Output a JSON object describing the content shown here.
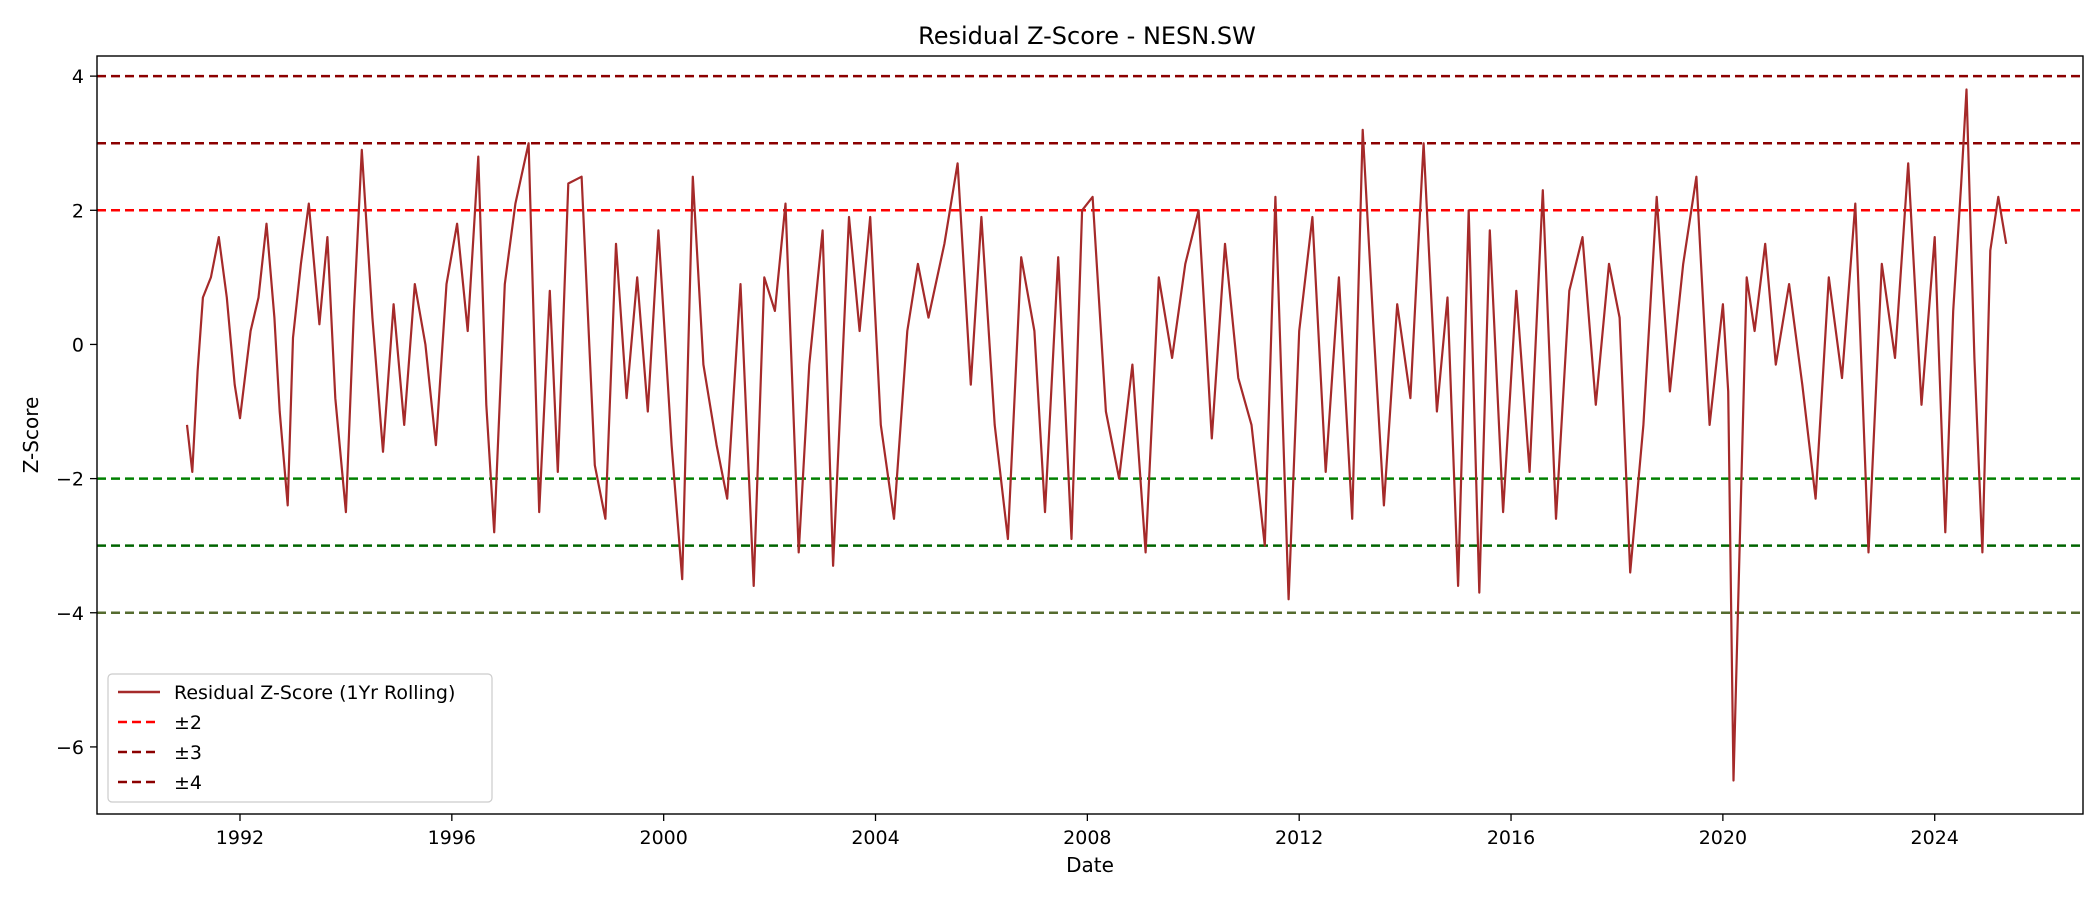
{
  "chart_data": {
    "type": "line",
    "title": "Residual Z-Score - NESN.SW",
    "xlabel": "Date",
    "ylabel": "Z-Score",
    "xlim": [
      1989.3,
      2026.8
    ],
    "ylim": [
      -7.0,
      4.3
    ],
    "x_ticks": [
      1992,
      1996,
      2000,
      2004,
      2008,
      2012,
      2016,
      2020,
      2024
    ],
    "y_ticks": [
      -6,
      -4,
      -2,
      0,
      2,
      4
    ],
    "grid": false,
    "legend_position": "lower-left",
    "series": [
      {
        "name": "Residual Z-Score (1Yr Rolling)",
        "color": "#a52a2a",
        "style": "solid",
        "x": [
          1991.0,
          1991.1,
          1991.2,
          1991.3,
          1991.45,
          1991.6,
          1991.75,
          1991.9,
          1992.0,
          1992.2,
          1992.35,
          1992.5,
          1992.65,
          1992.75,
          1992.9,
          1993.0,
          1993.15,
          1993.3,
          1993.5,
          1993.65,
          1993.8,
          1994.0,
          1994.15,
          1994.3,
          1994.5,
          1994.7,
          1994.9,
          1995.1,
          1995.3,
          1995.5,
          1995.7,
          1995.9,
          1996.1,
          1996.3,
          1996.5,
          1996.65,
          1996.8,
          1997.0,
          1997.2,
          1997.45,
          1997.65,
          1997.85,
          1998.0,
          1998.2,
          1998.45,
          1998.7,
          1998.9,
          1999.1,
          1999.3,
          1999.5,
          1999.7,
          1999.9,
          2000.15,
          2000.35,
          2000.55,
          2000.75,
          2001.0,
          2001.2,
          2001.45,
          2001.7,
          2001.9,
          2002.1,
          2002.3,
          2002.55,
          2002.75,
          2003.0,
          2003.2,
          2003.5,
          2003.7,
          2003.9,
          2004.1,
          2004.35,
          2004.6,
          2004.8,
          2005.0,
          2005.3,
          2005.55,
          2005.8,
          2006.0,
          2006.25,
          2006.5,
          2006.75,
          2007.0,
          2007.2,
          2007.45,
          2007.7,
          2007.9,
          2008.1,
          2008.35,
          2008.6,
          2008.85,
          2009.1,
          2009.35,
          2009.6,
          2009.85,
          2010.1,
          2010.35,
          2010.6,
          2010.85,
          2011.1,
          2011.35,
          2011.55,
          2011.8,
          2012.0,
          2012.25,
          2012.5,
          2012.75,
          2013.0,
          2013.2,
          2013.4,
          2013.6,
          2013.85,
          2014.1,
          2014.35,
          2014.6,
          2014.8,
          2015.0,
          2015.2,
          2015.4,
          2015.6,
          2015.85,
          2016.1,
          2016.35,
          2016.6,
          2016.85,
          2017.1,
          2017.35,
          2017.6,
          2017.85,
          2018.05,
          2018.25,
          2018.5,
          2018.75,
          2019.0,
          2019.25,
          2019.5,
          2019.75,
          2020.0,
          2020.1,
          2020.2,
          2020.3,
          2020.45,
          2020.6,
          2020.8,
          2021.0,
          2021.25,
          2021.5,
          2021.75,
          2022.0,
          2022.25,
          2022.5,
          2022.75,
          2023.0,
          2023.25,
          2023.5,
          2023.75,
          2024.0,
          2024.2,
          2024.35,
          2024.5,
          2024.6,
          2024.75,
          2024.9,
          2025.05,
          2025.2,
          2025.35
        ],
        "values": [
          -1.2,
          -1.9,
          -0.4,
          0.7,
          1.0,
          1.6,
          0.7,
          -0.6,
          -1.1,
          0.2,
          0.7,
          1.8,
          0.4,
          -1.0,
          -2.4,
          0.1,
          1.2,
          2.1,
          0.3,
          1.6,
          -0.8,
          -2.5,
          0.5,
          2.9,
          0.4,
          -1.6,
          0.6,
          -1.2,
          0.9,
          0.0,
          -1.5,
          0.9,
          1.8,
          0.2,
          2.8,
          -0.9,
          -2.8,
          0.9,
          2.1,
          3.0,
          -2.5,
          0.8,
          -1.9,
          2.4,
          2.5,
          -1.8,
          -2.6,
          1.5,
          -0.8,
          1.0,
          -1.0,
          1.7,
          -1.5,
          -3.5,
          2.5,
          -0.3,
          -1.5,
          -2.3,
          0.9,
          -3.6,
          1.0,
          0.5,
          2.1,
          -3.1,
          -0.3,
          1.7,
          -3.3,
          1.9,
          0.2,
          1.9,
          -1.2,
          -2.6,
          0.2,
          1.2,
          0.4,
          1.5,
          2.7,
          -0.6,
          1.9,
          -1.2,
          -2.9,
          1.3,
          0.2,
          -2.5,
          1.3,
          -2.9,
          2.0,
          2.2,
          -1.0,
          -2.0,
          -0.3,
          -3.1,
          1.0,
          -0.2,
          1.2,
          2.0,
          -1.4,
          1.5,
          -0.5,
          -1.2,
          -3.0,
          2.2,
          -3.8,
          0.2,
          1.9,
          -1.9,
          1.0,
          -2.6,
          3.2,
          0.3,
          -2.4,
          0.6,
          -0.8,
          3.0,
          -1.0,
          0.7,
          -3.6,
          2.0,
          -3.7,
          1.7,
          -2.5,
          0.8,
          -1.9,
          2.3,
          -2.6,
          0.8,
          1.6,
          -0.9,
          1.2,
          0.4,
          -3.4,
          -1.2,
          2.2,
          -0.7,
          1.2,
          2.5,
          -1.2,
          0.6,
          -0.7,
          -6.5,
          -3.5,
          1.0,
          0.2,
          1.5,
          -0.3,
          0.9,
          -0.6,
          -2.3,
          1.0,
          -0.5,
          2.1,
          -3.1,
          1.2,
          -0.2,
          2.7,
          -0.9,
          1.6,
          -2.8,
          0.5,
          2.4,
          3.8,
          -0.2,
          -3.1,
          1.4,
          2.2,
          1.5
        ]
      },
      {
        "name": "±2",
        "color": "#ff0000",
        "style": "dashed",
        "y": 2
      },
      {
        "name": "±3",
        "color": "#8b0000",
        "style": "dashed",
        "y": 3
      },
      {
        "name": "±4",
        "color": "#8b0000",
        "style": "dashed",
        "y": 4
      }
    ],
    "reference_lines": [
      {
        "y": 4,
        "color": "#8b0000"
      },
      {
        "y": 3,
        "color": "#8b0000"
      },
      {
        "y": 2,
        "color": "#ff0000"
      },
      {
        "y": -2,
        "color": "#008000"
      },
      {
        "y": -3,
        "color": "#006400"
      },
      {
        "y": -4,
        "color": "#556b2f"
      }
    ]
  }
}
